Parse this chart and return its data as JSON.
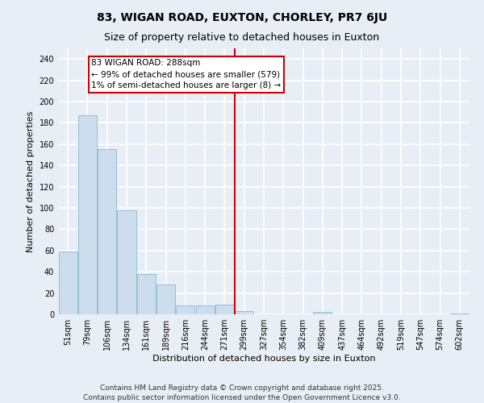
{
  "title": "83, WIGAN ROAD, EUXTON, CHORLEY, PR7 6JU",
  "subtitle": "Size of property relative to detached houses in Euxton",
  "xlabel": "Distribution of detached houses by size in Euxton",
  "ylabel": "Number of detached properties",
  "categories": [
    "51sqm",
    "79sqm",
    "106sqm",
    "134sqm",
    "161sqm",
    "189sqm",
    "216sqm",
    "244sqm",
    "271sqm",
    "299sqm",
    "327sqm",
    "354sqm",
    "382sqm",
    "409sqm",
    "437sqm",
    "464sqm",
    "492sqm",
    "519sqm",
    "547sqm",
    "574sqm",
    "602sqm"
  ],
  "values": [
    59,
    187,
    155,
    98,
    38,
    28,
    8,
    8,
    9,
    3,
    0,
    0,
    0,
    2,
    0,
    0,
    0,
    0,
    0,
    0,
    1
  ],
  "bar_color": "#ccdded",
  "bar_edge_color": "#88bbcc",
  "ref_line_color": "#cc0000",
  "annotation_text": "83 WIGAN ROAD: 288sqm\n← 99% of detached houses are smaller (579)\n1% of semi-detached houses are larger (8) →",
  "annotation_box_color": "#ffffff",
  "annotation_box_edge_color": "#cc0000",
  "ylim": [
    0,
    250
  ],
  "yticks": [
    0,
    20,
    40,
    60,
    80,
    100,
    120,
    140,
    160,
    180,
    200,
    220,
    240
  ],
  "background_color": "#e8eef5",
  "grid_color": "#ffffff",
  "footer_line1": "Contains HM Land Registry data © Crown copyright and database right 2025.",
  "footer_line2": "Contains public sector information licensed under the Open Government Licence v3.0.",
  "title_fontsize": 10,
  "subtitle_fontsize": 9,
  "label_fontsize": 8,
  "tick_fontsize": 7,
  "footer_fontsize": 6.5,
  "annot_fontsize": 7.5
}
